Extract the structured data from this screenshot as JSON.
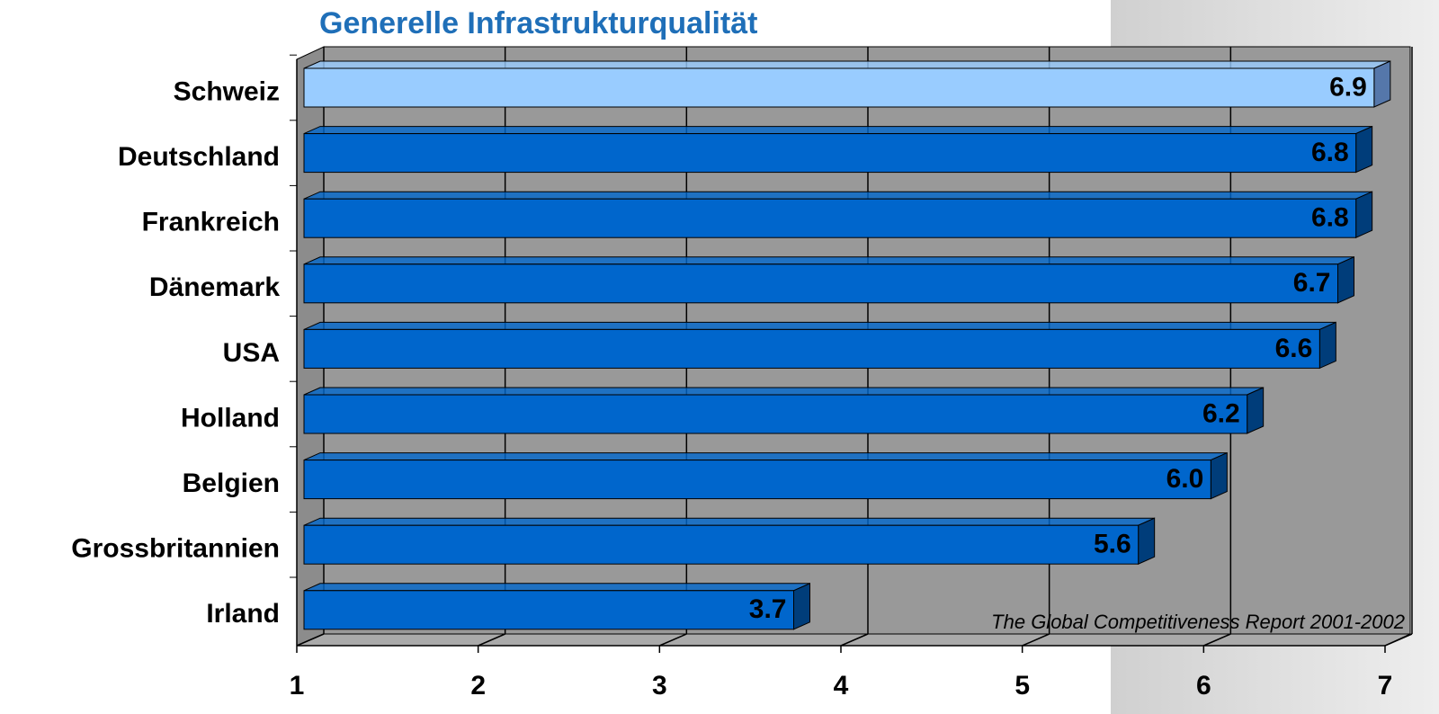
{
  "chart_data": {
    "type": "bar3d_horizontal",
    "title": "Generelle Infrastrukturqualität",
    "categories": [
      "Schweiz",
      "Deutschland",
      "Frankreich",
      "Dänemark",
      "USA",
      "Holland",
      "Belgien",
      "Grossbritannien",
      "Irland"
    ],
    "values": [
      6.9,
      6.8,
      6.8,
      6.7,
      6.6,
      6.2,
      6.0,
      5.6,
      3.7
    ],
    "value_labels": [
      "6.9",
      "6.8",
      "6.8",
      "6.7",
      "6.6",
      "6.2",
      "6.0",
      "5.6",
      "3.7"
    ],
    "colors": [
      "#99ccff",
      "#0066cc",
      "#0066cc",
      "#0066cc",
      "#0066cc",
      "#0066cc",
      "#0066cc",
      "#0066cc",
      "#0066cc"
    ],
    "xlim": [
      1,
      7
    ],
    "xticks": [
      1,
      2,
      3,
      4,
      5,
      6,
      7
    ],
    "grid": true,
    "annotation": "The Global Competitiveness Report 2001-2002"
  }
}
